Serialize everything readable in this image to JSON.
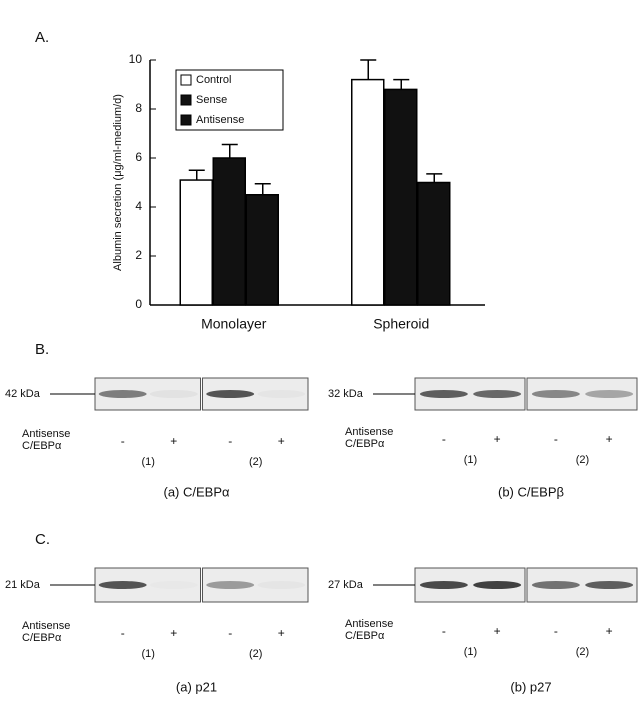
{
  "chart_data": {
    "type": "bar",
    "panel_label": "A.",
    "y_label": "Albumin secretion (μg/ml-medium/d)",
    "categories": [
      "Monolayer",
      "Spheroid"
    ],
    "series": [
      {
        "name": "Control",
        "color": "#ffffff",
        "values": [
          5.1,
          9.2
        ],
        "errors": [
          0.4,
          0.8
        ]
      },
      {
        "name": "Sense",
        "color": "#111111",
        "values": [
          6.0,
          8.8
        ],
        "errors": [
          0.55,
          0.4
        ]
      },
      {
        "name": "Antisense",
        "color": "#111111",
        "values": [
          4.5,
          5.0
        ],
        "errors": [
          0.45,
          0.35
        ]
      }
    ],
    "ylim": [
      0,
      10
    ],
    "yticks": [
      0,
      2,
      4,
      6,
      8,
      10
    ]
  },
  "blots": {
    "B": {
      "label": "B.",
      "panels": [
        {
          "marker": "42 kDa",
          "row_labels": [
            "Antisense",
            "C/EBPα"
          ],
          "lanes": [
            "-",
            "+",
            "-",
            "+"
          ],
          "groups": [
            "(1)",
            "(2)"
          ],
          "caption": "(a)  C/EBPα"
        },
        {
          "marker": "32 kDa",
          "row_labels": [
            "Antisense",
            "C/EBPα"
          ],
          "lanes": [
            "-",
            "+",
            "-",
            "+"
          ],
          "groups": [
            "(1)",
            "(2)"
          ],
          "caption": "(b)  C/EBPβ"
        }
      ]
    },
    "C": {
      "label": "C.",
      "panels": [
        {
          "marker": "21 kDa",
          "row_labels": [
            "Antisense",
            "C/EBPα"
          ],
          "lanes": [
            "-",
            "+",
            "-",
            "+"
          ],
          "groups": [
            "(1)",
            "(2)"
          ],
          "caption": "(a)  p21"
        },
        {
          "marker": "27 kDa",
          "row_labels": [
            "Antisense",
            "C/EBPα"
          ],
          "lanes": [
            "-",
            "+",
            "-",
            "+"
          ],
          "groups": [
            "(1)",
            "(2)"
          ],
          "caption": "(b)  p27"
        }
      ]
    }
  }
}
